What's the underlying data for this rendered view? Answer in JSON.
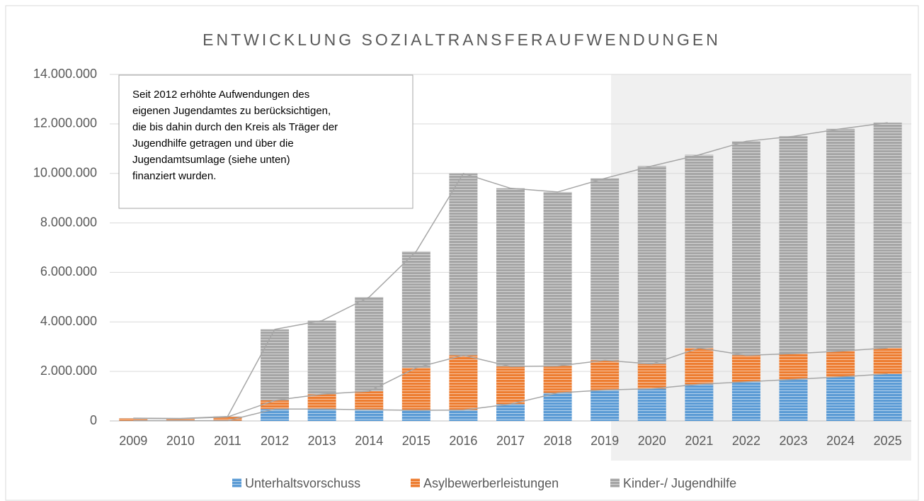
{
  "chart_data": {
    "type": "stacked_bar",
    "title": "ENTWICKLUNG SOZIALTRANSFERAUFWENDUNGEN",
    "annotation": [
      "Seit 2012 erhöhte Aufwendungen des",
      "eigenen Jugendamtes zu berücksichtigen,",
      "die bis dahin durch den Kreis als Träger der",
      "Jugendhilfe getragen und über die",
      "Jugendamtsumlage (siehe unten)",
      "finanziert wurden."
    ],
    "categories": [
      "2009",
      "2010",
      "2011",
      "2012",
      "2013",
      "2014",
      "2015",
      "2016",
      "2017",
      "2018",
      "2019",
      "2020",
      "2021",
      "2022",
      "2023",
      "2024",
      "2025"
    ],
    "series": [
      {
        "name": "Unterhaltsvorschuss",
        "color": "#5b9bd5",
        "values": [
          10000,
          10000,
          10000,
          480000,
          480000,
          450000,
          430000,
          440000,
          680000,
          1130000,
          1250000,
          1300000,
          1480000,
          1580000,
          1680000,
          1780000,
          1900000
        ]
      },
      {
        "name": "Asylbewerberleistungen",
        "color": "#ed7d31",
        "values": [
          90000,
          80000,
          150000,
          350000,
          600000,
          750000,
          1720000,
          2210000,
          1520000,
          1090000,
          1200000,
          1000000,
          1470000,
          1070000,
          1040000,
          1040000,
          1050000
        ]
      },
      {
        "name": "Kinder-/ Jugendhilfe",
        "color": "#a5a5a5",
        "values": [
          10000,
          10000,
          20000,
          2870000,
          2970000,
          3800000,
          4700000,
          7350000,
          7200000,
          7030000,
          7350000,
          8000000,
          7800000,
          8650000,
          8780000,
          8980000,
          9100000
        ]
      }
    ],
    "ylim": [
      0,
      14000000
    ],
    "yticks": [
      0,
      {
        "value": 2000000,
        "label": "2.000.000"
      },
      {
        "value": 4000000,
        "label": "4.000.000"
      },
      {
        "value": 6000000,
        "label": "6.000.000"
      },
      {
        "value": 8000000,
        "label": "8.000.000"
      },
      {
        "value": 10000000,
        "label": "10.000.000"
      },
      {
        "value": 12000000,
        "label": "12.000.000"
      },
      {
        "value": 14000000,
        "label": "14.000.000"
      }
    ],
    "grid": true,
    "legend": "bottom"
  }
}
